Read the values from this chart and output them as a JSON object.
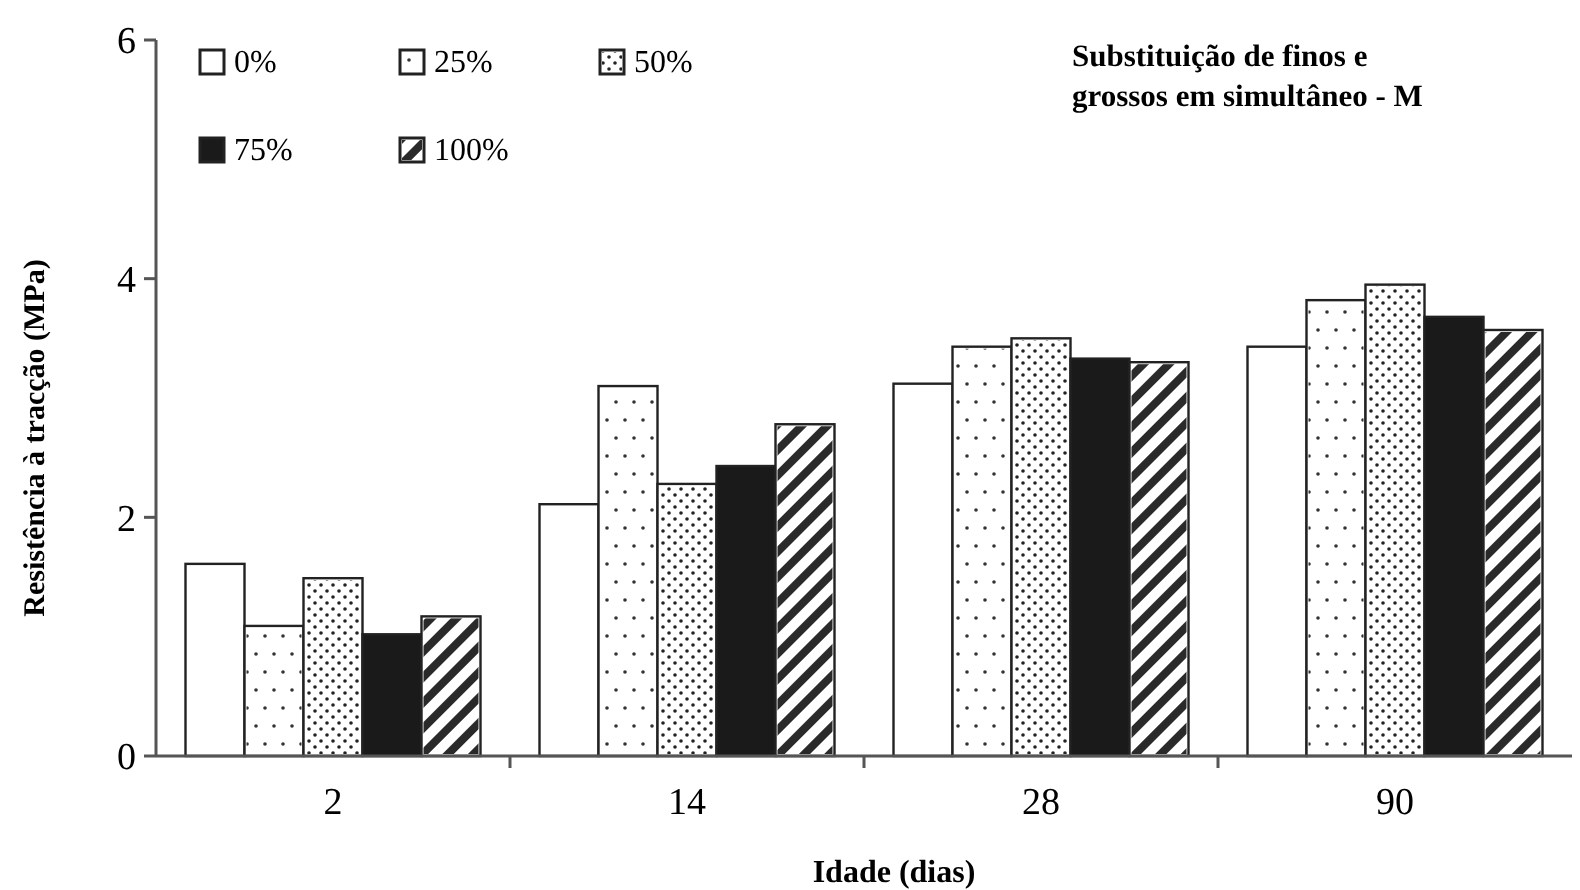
{
  "chart_data": {
    "type": "bar",
    "title": "Substituição de finos e grossos em simultâneo - M",
    "xlabel": "Idade (dias)",
    "ylabel": "Resistência à tracção (MPa)",
    "categories": [
      "2",
      "14",
      "28",
      "90"
    ],
    "series": [
      {
        "name": "0%",
        "color": "#ffffff",
        "values": [
          1.61,
          2.11,
          3.12,
          3.43
        ]
      },
      {
        "name": "25%",
        "color": "#ffffff",
        "values": [
          1.09,
          3.1,
          3.43,
          3.82
        ]
      },
      {
        "name": "50%",
        "color": "#ffffff",
        "values": [
          1.49,
          2.28,
          3.5,
          3.95
        ]
      },
      {
        "name": "75%",
        "color": "#1a1a1a",
        "values": [
          1.02,
          2.43,
          3.33,
          3.68
        ]
      },
      {
        "name": "100%",
        "color": "#ffffff",
        "values": [
          1.17,
          2.78,
          3.3,
          3.57
        ]
      }
    ],
    "ylim": [
      0,
      6
    ],
    "yticks": [
      0,
      2,
      4,
      6
    ],
    "grid": false,
    "legend": "top left"
  }
}
